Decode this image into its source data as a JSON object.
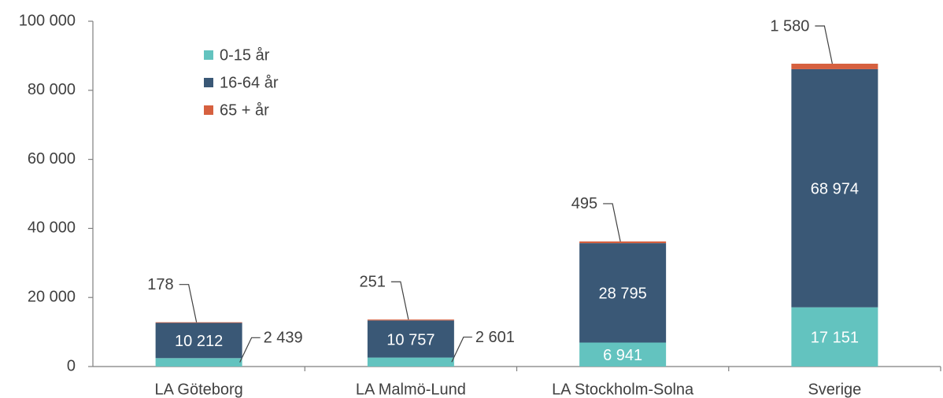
{
  "chart_data": {
    "type": "bar",
    "stacked": true,
    "categories": [
      "LA Göteborg",
      "LA Malmö-Lund",
      "LA Stockholm-Solna",
      "Sverige"
    ],
    "series": [
      {
        "name": "0-15 år",
        "color": "#63c3bf",
        "values": [
          2439,
          2601,
          6941,
          17151
        ],
        "value_labels": [
          "2 439",
          "2 601",
          "6 941",
          "17 151"
        ]
      },
      {
        "name": "16-64 år",
        "color": "#3a5876",
        "values": [
          10212,
          10757,
          28795,
          68974
        ],
        "value_labels": [
          "10 212",
          "10 757",
          "28 795",
          "68 974"
        ]
      },
      {
        "name": "65 + år",
        "color": "#d6603f",
        "values": [
          178,
          251,
          495,
          1580
        ],
        "value_labels": [
          "178",
          "251",
          "495",
          "1 580"
        ]
      }
    ],
    "ylim": [
      0,
      100000
    ],
    "yticks": [
      0,
      {
        "value": 20000,
        "label": "20 000"
      },
      {
        "value": 40000,
        "label": "40 000"
      },
      {
        "value": 60000,
        "label": "60 000"
      },
      {
        "value": 80000,
        "label": "80 000"
      },
      {
        "value": 100000,
        "label": "100 000"
      }
    ],
    "legend": "upper left"
  }
}
